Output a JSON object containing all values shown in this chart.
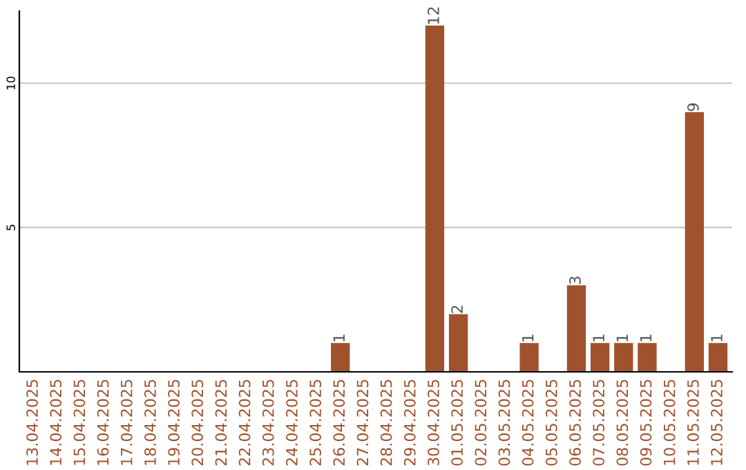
{
  "chart_data": {
    "type": "bar",
    "categories": [
      "13.04.2025",
      "14.04.2025",
      "15.04.2025",
      "16.04.2025",
      "17.04.2025",
      "18.04.2025",
      "19.04.2025",
      "20.04.2025",
      "21.04.2025",
      "22.04.2025",
      "23.04.2025",
      "24.04.2025",
      "25.04.2025",
      "26.04.2025",
      "27.04.2025",
      "28.04.2025",
      "29.04.2025",
      "30.04.2025",
      "01.05.2025",
      "02.05.2025",
      "03.05.2025",
      "04.05.2025",
      "05.05.2025",
      "06.05.2025",
      "07.05.2025",
      "08.05.2025",
      "09.05.2025",
      "10.05.2025",
      "11.05.2025",
      "12.05.2025"
    ],
    "values": [
      0,
      0,
      0,
      0,
      0,
      0,
      0,
      0,
      0,
      0,
      0,
      0,
      0,
      1,
      0,
      0,
      0,
      12,
      2,
      0,
      0,
      1,
      0,
      3,
      1,
      1,
      1,
      0,
      9,
      1
    ],
    "value_labels": [
      null,
      null,
      null,
      null,
      null,
      null,
      null,
      null,
      null,
      null,
      null,
      null,
      null,
      "1",
      null,
      null,
      null,
      "12",
      "2",
      null,
      null,
      "1",
      null,
      "3",
      "1",
      "1",
      "1",
      null,
      "9",
      "1"
    ],
    "color": "#a0522d",
    "ylim": [
      0,
      12.5
    ],
    "yticks": [
      5,
      10
    ],
    "grid": "y"
  }
}
